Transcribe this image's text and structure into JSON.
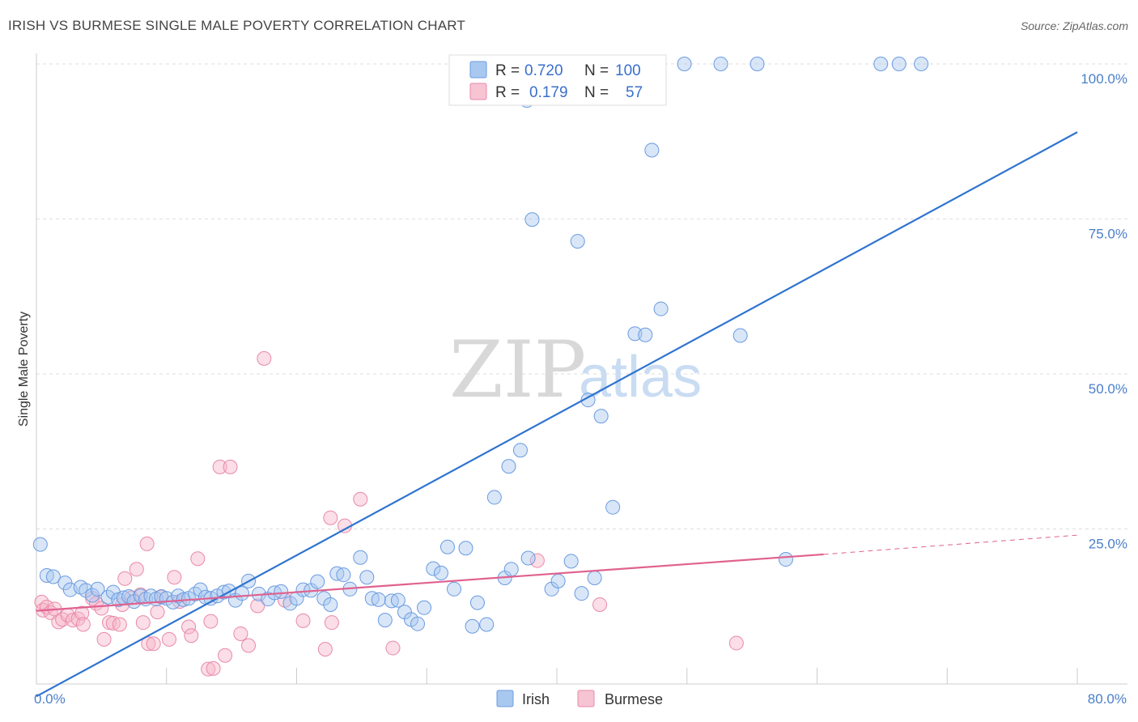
{
  "header": {
    "title": "IRISH VS BURMESE SINGLE MALE POVERTY CORRELATION CHART",
    "source": "Source: ZipAtlas.com"
  },
  "watermark": {
    "zip": "ZIP",
    "atlas": "atlas"
  },
  "legend": {
    "irish": {
      "r_label": "R =",
      "r_value": "0.720",
      "n_label": "N =",
      "n_value": "100"
    },
    "burmese": {
      "r_label": "R =",
      "r_value": "0.179",
      "n_label": "N =",
      "n_value": "57"
    }
  },
  "bottom_legend": {
    "irish": "Irish",
    "burmese": "Burmese"
  },
  "colors": {
    "irish_fill": "#a9c8ef",
    "irish_stroke": "#6a9be0",
    "irish_line": "#2f74d0",
    "burmese_fill": "#f6b6c9",
    "burmese_stroke": "#e88aa8",
    "burmese_line": "#e0628f",
    "grid": "#dddddd",
    "tick_text": "#4a7fc9"
  },
  "chart_data": {
    "type": "scatter",
    "title": "IRISH VS BURMESE SINGLE MALE POVERTY CORRELATION CHART",
    "xlabel": "",
    "ylabel": "Single Male Poverty",
    "xlim": [
      0,
      80
    ],
    "ylim": [
      0,
      100
    ],
    "x_tick_labels": [
      "0.0%",
      "80.0%"
    ],
    "y_ticks": [
      25,
      50,
      75,
      100
    ],
    "y_tick_labels": [
      "25.0%",
      "50.0%",
      "75.0%",
      "100.0%"
    ],
    "grid": true,
    "legend_position": "top-center",
    "series": [
      {
        "name": "Irish",
        "r": 0.72,
        "n": 100,
        "trendline": {
          "x": [
            0,
            80
          ],
          "y": [
            -2,
            89
          ]
        },
        "points": [
          [
            0.3,
            22.5
          ],
          [
            0.8,
            17.5
          ],
          [
            1.3,
            17.3
          ],
          [
            2.2,
            16.3
          ],
          [
            2.6,
            15.2
          ],
          [
            3.4,
            15.6
          ],
          [
            3.8,
            15.1
          ],
          [
            4.3,
            14.3
          ],
          [
            4.7,
            15.3
          ],
          [
            5.5,
            14.0
          ],
          [
            5.9,
            14.8
          ],
          [
            6.3,
            13.6
          ],
          [
            6.7,
            13.9
          ],
          [
            7.1,
            14.1
          ],
          [
            7.5,
            13.3
          ],
          [
            8.0,
            14.2
          ],
          [
            8.4,
            13.7
          ],
          [
            8.8,
            14.2
          ],
          [
            9.2,
            13.7
          ],
          [
            9.6,
            14.1
          ],
          [
            10.0,
            13.8
          ],
          [
            10.5,
            13.2
          ],
          [
            10.9,
            14.2
          ],
          [
            11.3,
            13.6
          ],
          [
            11.7,
            13.8
          ],
          [
            12.2,
            14.5
          ],
          [
            12.6,
            15.2
          ],
          [
            13.0,
            14.0
          ],
          [
            13.4,
            13.8
          ],
          [
            13.9,
            14.2
          ],
          [
            14.4,
            14.8
          ],
          [
            14.8,
            15.0
          ],
          [
            15.3,
            13.5
          ],
          [
            15.8,
            14.6
          ],
          [
            16.3,
            16.6
          ],
          [
            17.1,
            14.5
          ],
          [
            17.8,
            13.7
          ],
          [
            18.3,
            14.7
          ],
          [
            18.8,
            14.9
          ],
          [
            19.5,
            13.0
          ],
          [
            20.0,
            13.8
          ],
          [
            20.5,
            15.2
          ],
          [
            21.1,
            15.1
          ],
          [
            21.6,
            16.5
          ],
          [
            22.1,
            13.8
          ],
          [
            22.6,
            12.8
          ],
          [
            23.1,
            17.8
          ],
          [
            23.6,
            17.6
          ],
          [
            24.1,
            15.3
          ],
          [
            24.9,
            20.4
          ],
          [
            25.4,
            17.2
          ],
          [
            25.8,
            13.8
          ],
          [
            26.3,
            13.6
          ],
          [
            26.8,
            10.3
          ],
          [
            27.3,
            13.4
          ],
          [
            27.8,
            13.5
          ],
          [
            28.3,
            11.6
          ],
          [
            28.8,
            10.4
          ],
          [
            29.3,
            9.7
          ],
          [
            29.8,
            12.3
          ],
          [
            30.5,
            18.6
          ],
          [
            31.1,
            17.9
          ],
          [
            31.6,
            22.1
          ],
          [
            32.1,
            15.3
          ],
          [
            33.0,
            21.9
          ],
          [
            33.5,
            9.3
          ],
          [
            33.9,
            13.1
          ],
          [
            34.6,
            9.6
          ],
          [
            35.2,
            30.1
          ],
          [
            36.0,
            17.1
          ],
          [
            36.3,
            35.1
          ],
          [
            36.5,
            18.5
          ],
          [
            37.2,
            37.7
          ],
          [
            37.8,
            20.3
          ],
          [
            37.7,
            94.1
          ],
          [
            38.1,
            74.9
          ],
          [
            39.6,
            15.3
          ],
          [
            40.1,
            16.6
          ],
          [
            41.1,
            19.8
          ],
          [
            41.6,
            71.4
          ],
          [
            41.9,
            14.6
          ],
          [
            42.4,
            45.8
          ],
          [
            42.9,
            17.1
          ],
          [
            43.4,
            43.2
          ],
          [
            44.3,
            28.5
          ],
          [
            46.0,
            56.5
          ],
          [
            46.8,
            56.3
          ],
          [
            47.3,
            86.1
          ],
          [
            48.0,
            60.5
          ],
          [
            54.1,
            56.2
          ],
          [
            57.6,
            20.1
          ],
          [
            37.4,
            100
          ],
          [
            38.8,
            100
          ],
          [
            44.1,
            100
          ],
          [
            49.8,
            100
          ],
          [
            52.6,
            100
          ],
          [
            55.4,
            100
          ],
          [
            64.9,
            100
          ],
          [
            66.3,
            100
          ],
          [
            68.0,
            100
          ]
        ]
      },
      {
        "name": "Burmese",
        "r": 0.179,
        "n": 57,
        "trendline": {
          "x": [
            0,
            60.5
          ],
          "y": [
            11.8,
            20.9
          ]
        },
        "trendline_extended": {
          "x": [
            60.5,
            80
          ],
          "y": [
            20.9,
            24
          ]
        },
        "points": [
          [
            0.4,
            13.2
          ],
          [
            0.5,
            11.9
          ],
          [
            0.8,
            12.4
          ],
          [
            1.1,
            11.5
          ],
          [
            1.4,
            12.1
          ],
          [
            1.7,
            10.0
          ],
          [
            2.0,
            10.4
          ],
          [
            2.4,
            11.1
          ],
          [
            2.8,
            10.3
          ],
          [
            3.2,
            10.5
          ],
          [
            3.5,
            11.4
          ],
          [
            3.6,
            9.6
          ],
          [
            4.3,
            13.8
          ],
          [
            4.6,
            13.0
          ],
          [
            5.0,
            12.2
          ],
          [
            5.2,
            7.2
          ],
          [
            5.6,
            9.9
          ],
          [
            5.9,
            9.8
          ],
          [
            6.4,
            9.6
          ],
          [
            6.6,
            12.8
          ],
          [
            6.8,
            17.0
          ],
          [
            7.3,
            13.9
          ],
          [
            7.7,
            18.5
          ],
          [
            8.0,
            14.4
          ],
          [
            8.2,
            9.9
          ],
          [
            8.5,
            22.6
          ],
          [
            8.6,
            6.5
          ],
          [
            9.0,
            6.5
          ],
          [
            9.3,
            11.6
          ],
          [
            9.6,
            14.0
          ],
          [
            10.2,
            7.2
          ],
          [
            10.6,
            17.2
          ],
          [
            11.0,
            13.3
          ],
          [
            11.7,
            9.2
          ],
          [
            11.9,
            7.8
          ],
          [
            12.4,
            20.2
          ],
          [
            13.2,
            2.4
          ],
          [
            13.4,
            10.1
          ],
          [
            13.6,
            2.5
          ],
          [
            14.1,
            35.0
          ],
          [
            14.5,
            4.6
          ],
          [
            14.9,
            35.0
          ],
          [
            15.7,
            8.1
          ],
          [
            16.3,
            6.2
          ],
          [
            17.0,
            12.6
          ],
          [
            17.5,
            52.5
          ],
          [
            19.1,
            13.5
          ],
          [
            20.5,
            10.2
          ],
          [
            22.2,
            5.6
          ],
          [
            22.6,
            26.8
          ],
          [
            22.7,
            9.9
          ],
          [
            23.7,
            25.5
          ],
          [
            24.9,
            29.8
          ],
          [
            27.4,
            5.8
          ],
          [
            38.5,
            19.9
          ],
          [
            43.3,
            12.8
          ],
          [
            53.8,
            6.6
          ]
        ]
      }
    ]
  }
}
